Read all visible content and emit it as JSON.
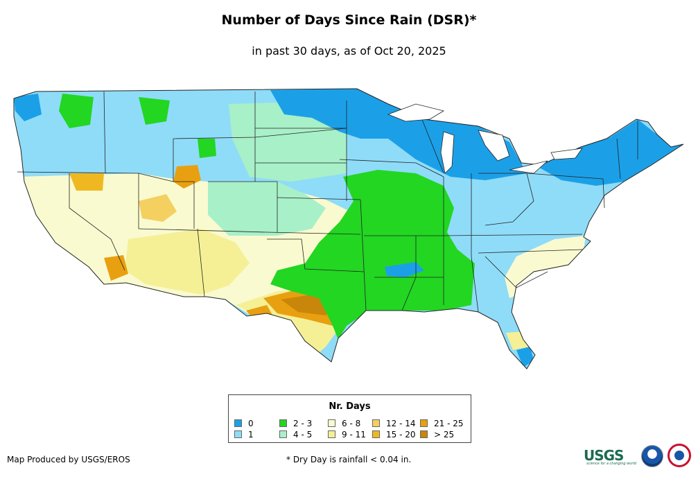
{
  "title": "Number of Days Since Rain (DSR)*",
  "subtitle": "in past 30 days, as of Oct 20, 2025",
  "legend": {
    "title": "Nr. Days",
    "items": [
      {
        "label": "0",
        "color": "#1ba0e8"
      },
      {
        "label": "1",
        "color": "#8fdcf8"
      },
      {
        "label": "2 - 3",
        "color": "#22d622"
      },
      {
        "label": "4 - 5",
        "color": "#a8f0c8"
      },
      {
        "label": "6 - 8",
        "color": "#fafad0"
      },
      {
        "label": "9 - 11",
        "color": "#f5f096"
      },
      {
        "label": "12 - 14",
        "color": "#f4d060"
      },
      {
        "label": "15 - 20",
        "color": "#f0b820"
      },
      {
        "label": "21 - 25",
        "color": "#e8a010"
      },
      {
        "label": "> 25",
        "color": "#c8860a"
      }
    ]
  },
  "footer": {
    "credit": "Map Produced by USGS/EROS",
    "note": "* Dry Day is rainfall < 0.04 in."
  },
  "logos": {
    "usgs": "USGS",
    "usgs_tagline": "science for a changing world",
    "noaa": "noaa-logo-icon",
    "nws": "nws-logo-icon"
  }
}
